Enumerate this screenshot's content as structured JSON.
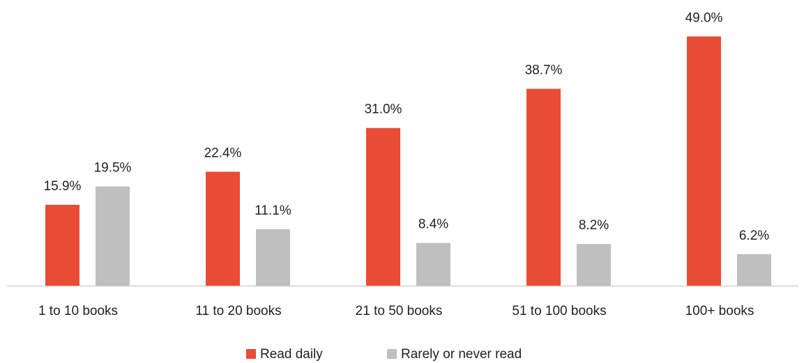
{
  "chart_data": {
    "type": "bar",
    "categories": [
      "1 to 10 books",
      "11 to 20 books",
      "21 to 50 books",
      "51 to 100 books",
      "100+ books"
    ],
    "series": [
      {
        "name": "Read daily",
        "color": "#e84c35",
        "values": [
          15.9,
          22.4,
          31.0,
          38.7,
          49.0
        ],
        "value_labels": [
          "15.9%",
          "22.4%",
          "31.0%",
          "38.7%",
          "49.0%"
        ]
      },
      {
        "name": "Rarely or never read",
        "color": "#bfbfbf",
        "values": [
          19.5,
          11.1,
          8.4,
          8.2,
          6.2
        ],
        "value_labels": [
          "19.5%",
          "11.1%",
          "8.4%",
          "8.2%",
          "6.2%"
        ]
      }
    ],
    "legend": "bottom"
  }
}
